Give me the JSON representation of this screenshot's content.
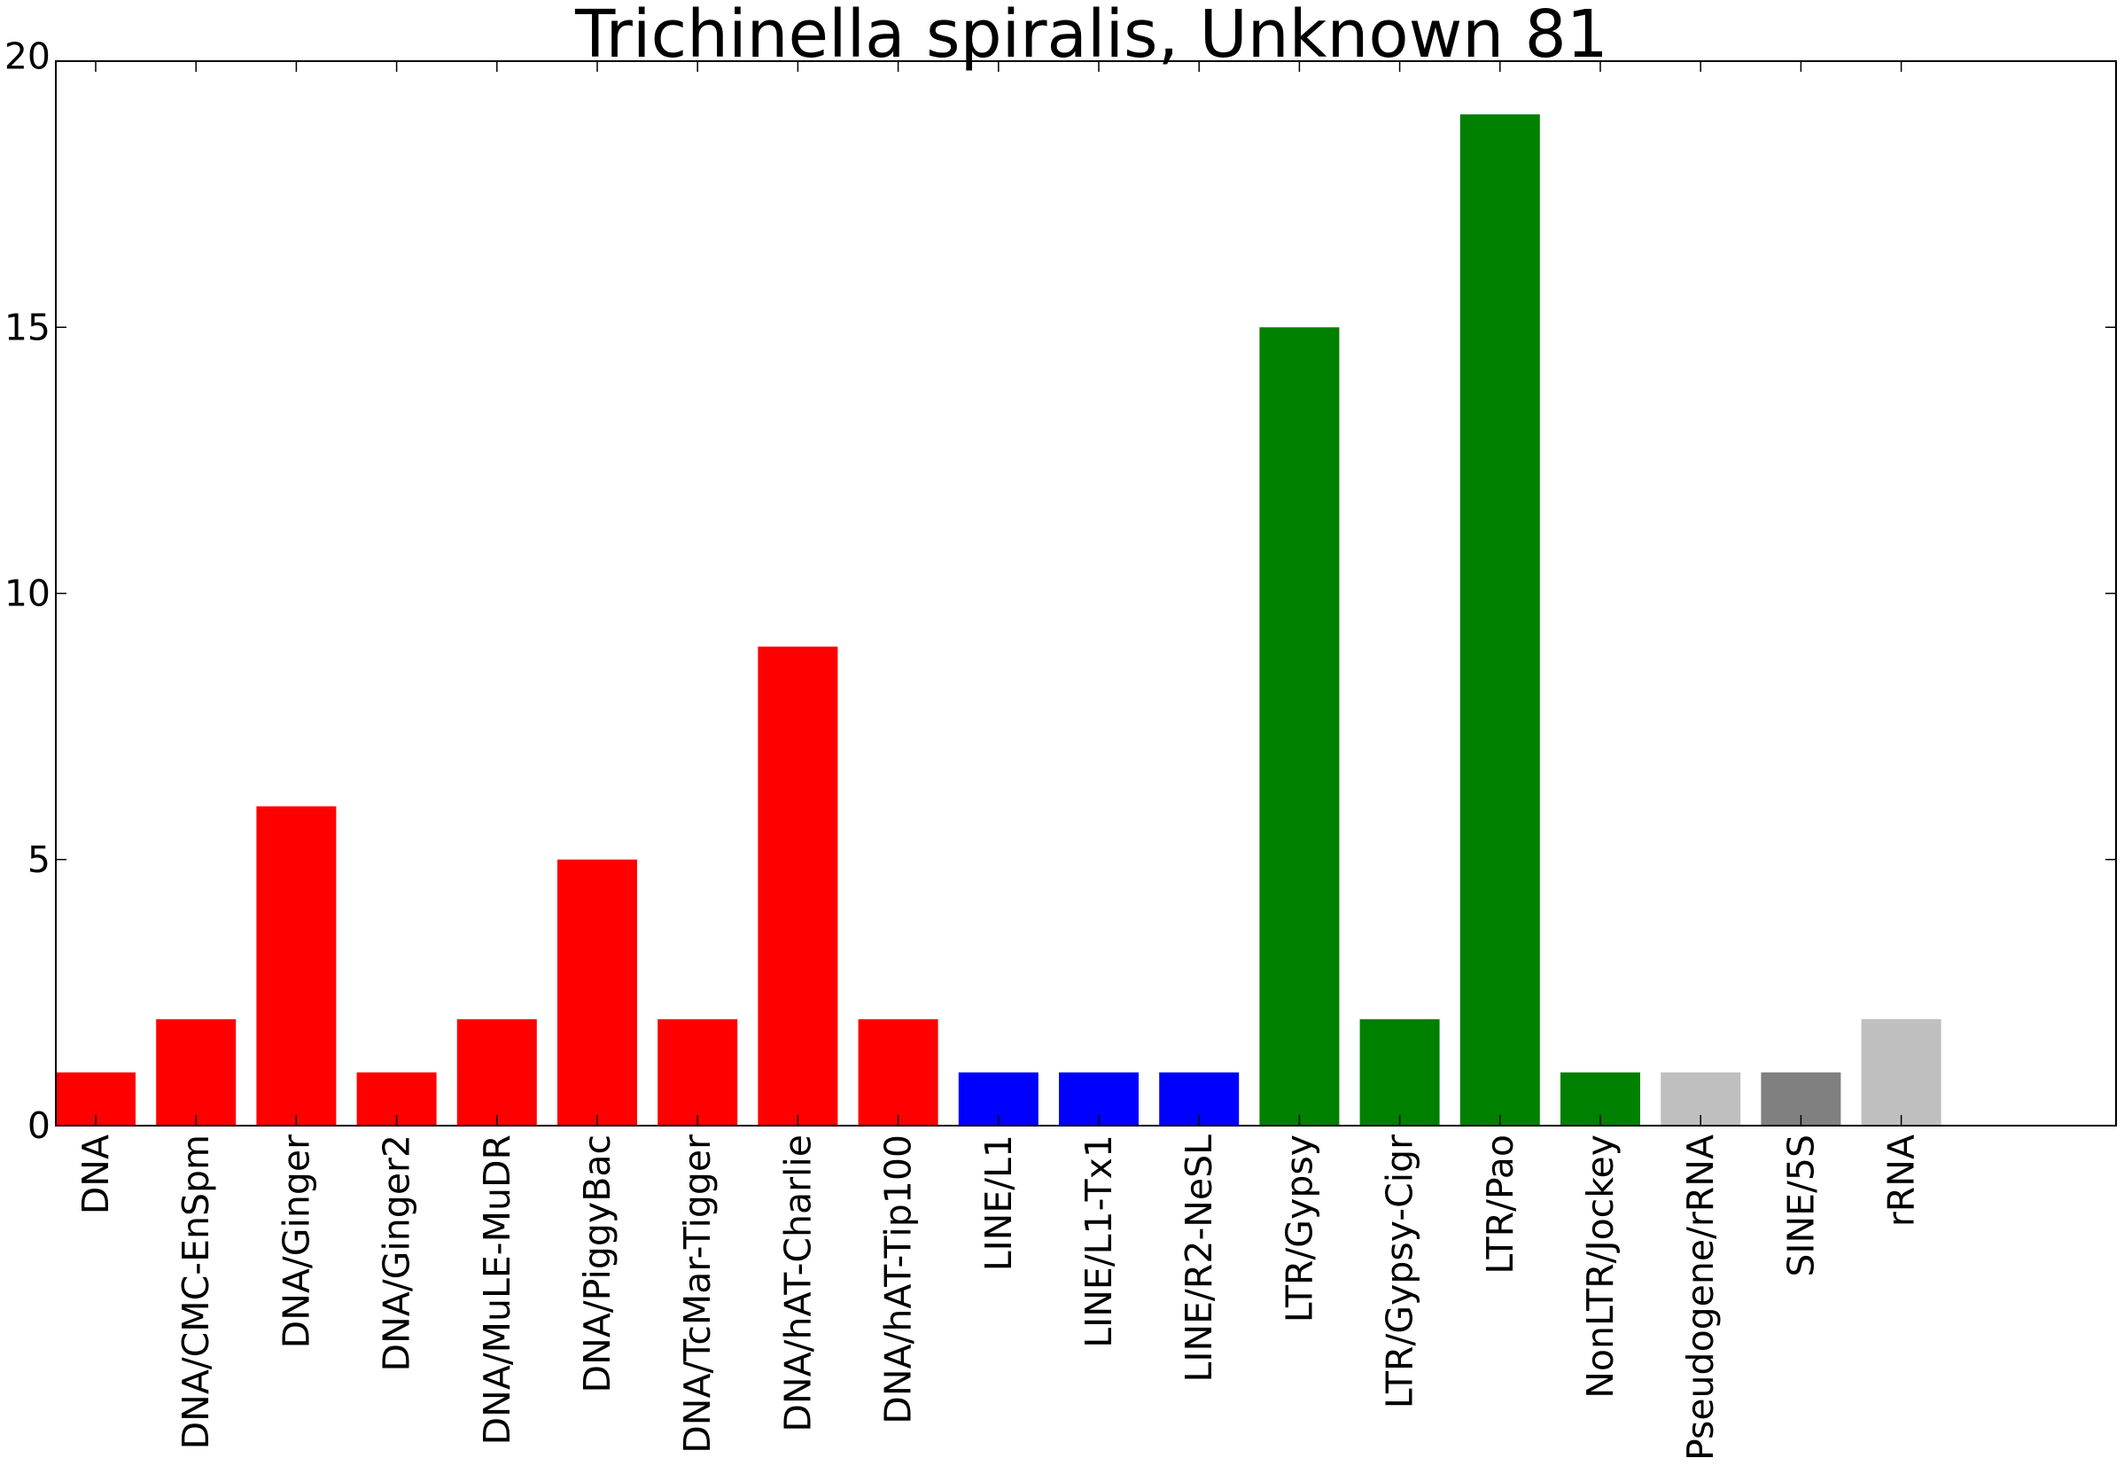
{
  "chart_data": {
    "type": "bar",
    "title": "Trichinella spiralis, Unknown 81",
    "xlabel": "",
    "ylabel": "",
    "ylim": [
      0,
      20
    ],
    "yticks": [
      "0",
      "5",
      "10",
      "15",
      "20"
    ],
    "grid": false,
    "categories": [
      "DNA",
      "DNA/CMC-EnSpm",
      "DNA/Ginger",
      "DNA/Ginger2",
      "DNA/MuLE-MuDR",
      "DNA/PiggyBac",
      "DNA/TcMar-Tigger",
      "DNA/hAT-Charlie",
      "DNA/hAT-Tip100",
      "LINE/L1",
      "LINE/L1-Tx1",
      "LINE/R2-NeSL",
      "LTR/Gypsy",
      "LTR/Gypsy-Cigr",
      "LTR/Pao",
      "NonLTR/Jockey",
      "Pseudogene/rRNA",
      "SINE/5S",
      "rRNA"
    ],
    "values": [
      1,
      2,
      6,
      1,
      2,
      5,
      2,
      9,
      2,
      1,
      1,
      1,
      15,
      2,
      19,
      1,
      1,
      1,
      2
    ],
    "colors": [
      "#ff0000",
      "#ff0000",
      "#ff0000",
      "#ff0000",
      "#ff0000",
      "#ff0000",
      "#ff0000",
      "#ff0000",
      "#ff0000",
      "#0000ff",
      "#0000ff",
      "#0000ff",
      "#008000",
      "#008000",
      "#008000",
      "#008000",
      "#bfbfbf",
      "#808080",
      "#bfbfbf"
    ]
  }
}
